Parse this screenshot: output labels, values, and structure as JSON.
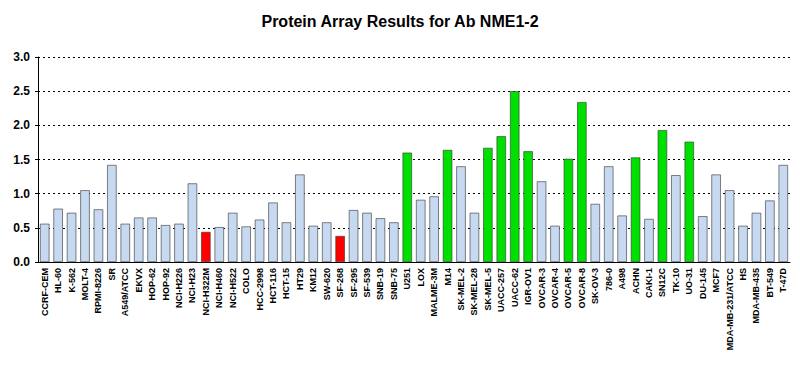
{
  "chart_data": {
    "type": "bar",
    "title": "Protein Array Results for Ab NME1-2",
    "categories": [
      "CCRF-CEM",
      "HL-60",
      "K-562",
      "MOLT-4",
      "RPMI-8226",
      "SR",
      "A549/ATCC",
      "EKVX",
      "HOP-62",
      "HOP-92",
      "NCI-H226",
      "NCI-H23",
      "NCI-H322M",
      "NCI-H460",
      "NCI-H522",
      "COLO",
      "HCC-2998",
      "HCT-116",
      "HCT-15",
      "HT29",
      "KM12",
      "SW-620",
      "SF-268",
      "SF-295",
      "SF-539",
      "SNB-19",
      "SNB-75",
      "U251",
      "LOX",
      "MALME-3M",
      "M14",
      "SK-MEL-2",
      "SK-MEL-28",
      "SK-MEL-5",
      "UACC-257",
      "UACC-62",
      "IGR-OV1",
      "OVCAR-3",
      "OVCAR-4",
      "OVCAR-5",
      "OVCAR-8",
      "SK-OV-3",
      "786-0",
      "A498",
      "ACHN",
      "CAKI-1",
      "SN12C",
      "TK-10",
      "UO-31",
      "DU-145",
      "MCF7",
      "MDA-MB-231/ATCC",
      "HS",
      "MDA-MB-435",
      "BT-549",
      "T-47D"
    ],
    "values": [
      0.56,
      0.78,
      0.72,
      1.05,
      0.77,
      1.42,
      0.56,
      0.65,
      0.65,
      0.54,
      0.56,
      1.15,
      0.44,
      0.51,
      0.72,
      0.52,
      0.62,
      0.87,
      0.58,
      1.28,
      0.53,
      0.58,
      0.38,
      0.76,
      0.72,
      0.64,
      0.58,
      1.6,
      0.91,
      0.96,
      1.64,
      1.4,
      0.72,
      1.67,
      1.84,
      2.5,
      1.62,
      1.18,
      0.53,
      1.51,
      2.34,
      0.85,
      1.4,
      0.68,
      1.53,
      0.63,
      1.93,
      1.27,
      1.76,
      0.67,
      1.28,
      1.05,
      0.53,
      0.72,
      0.9,
      1.42
    ],
    "colors": [
      "#c6d9f1",
      "#c6d9f1",
      "#c6d9f1",
      "#c6d9f1",
      "#c6d9f1",
      "#c6d9f1",
      "#c6d9f1",
      "#c6d9f1",
      "#c6d9f1",
      "#c6d9f1",
      "#c6d9f1",
      "#c6d9f1",
      "#ff0000",
      "#c6d9f1",
      "#c6d9f1",
      "#c6d9f1",
      "#c6d9f1",
      "#c6d9f1",
      "#c6d9f1",
      "#c6d9f1",
      "#c6d9f1",
      "#c6d9f1",
      "#ff0000",
      "#c6d9f1",
      "#c6d9f1",
      "#c6d9f1",
      "#c6d9f1",
      "#00e000",
      "#c6d9f1",
      "#c6d9f1",
      "#00e000",
      "#c6d9f1",
      "#c6d9f1",
      "#00e000",
      "#00e000",
      "#00e000",
      "#00e000",
      "#c6d9f1",
      "#c6d9f1",
      "#00e000",
      "#00e000",
      "#c6d9f1",
      "#c6d9f1",
      "#c6d9f1",
      "#00e000",
      "#c6d9f1",
      "#00e000",
      "#c6d9f1",
      "#00e000",
      "#c6d9f1",
      "#c6d9f1",
      "#c6d9f1",
      "#c6d9f1",
      "#c6d9f1",
      "#c6d9f1",
      "#c6d9f1"
    ],
    "ylim": [
      0,
      3
    ],
    "yticks": [
      {
        "value": 0,
        "label": "0.0"
      },
      0.5,
      {
        "value": 1,
        "label": "1.0"
      },
      1.5,
      {
        "value": 2,
        "label": "2.0"
      },
      2.5,
      {
        "value": 3,
        "label": "3.0"
      }
    ],
    "grid": true
  }
}
